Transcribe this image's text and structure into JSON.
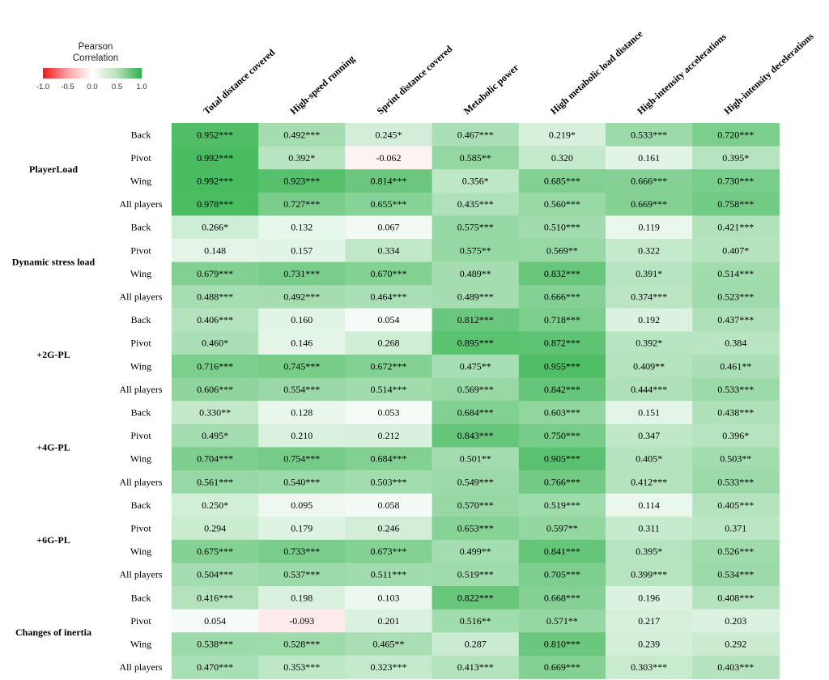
{
  "legend": {
    "title_line1": "Pearson",
    "title_line2": "Correlation",
    "ticks": [
      "-1.0",
      "-0.5",
      "0.0",
      "0.5",
      "1.0"
    ],
    "tick_values": [
      -1.0,
      -0.5,
      0.0,
      0.5,
      1.0
    ],
    "colors": {
      "negative": "#ee1b1b",
      "zero": "#ffffff",
      "positive": "#2fb14a"
    }
  },
  "chart_data": {
    "type": "heatmap",
    "title": "",
    "value_range": [
      -1.0,
      1.0
    ],
    "columns": [
      "Total distance covered",
      "High-speed running",
      "Sprint distance covered",
      "Metabolic power",
      "High metabolic load distance",
      "High-intensity accelerations",
      "High-intensity decelerations"
    ],
    "groups": [
      {
        "name": "PlayerLoad",
        "rows": [
          {
            "label": "Back",
            "values": [
              0.952,
              0.492,
              0.245,
              0.467,
              0.219,
              0.533,
              0.72
            ],
            "texts": [
              "0.952***",
              "0.492***",
              "0.245*",
              "0.467***",
              "0.219*",
              "0.533***",
              "0.720***"
            ]
          },
          {
            "label": "Pivot",
            "values": [
              0.992,
              0.392,
              -0.062,
              0.585,
              0.32,
              0.161,
              0.395
            ],
            "texts": [
              "0.992***",
              "0.392*",
              "-0.062",
              "0.585**",
              "0.320",
              "0.161",
              "0.395*"
            ]
          },
          {
            "label": "Wing",
            "values": [
              0.992,
              0.923,
              0.814,
              0.356,
              0.685,
              0.666,
              0.73
            ],
            "texts": [
              "0.992***",
              "0.923***",
              "0.814***",
              "0.356*",
              "0.685***",
              "0.666***",
              "0.730***"
            ]
          },
          {
            "label": "All players",
            "values": [
              0.978,
              0.727,
              0.655,
              0.435,
              0.56,
              0.669,
              0.758
            ],
            "texts": [
              "0.978***",
              "0.727***",
              "0.655***",
              "0.435***",
              "0.560***",
              "0.669***",
              "0.758***"
            ]
          }
        ]
      },
      {
        "name": "Dynamic stress load",
        "rows": [
          {
            "label": "Back",
            "values": [
              0.266,
              0.132,
              0.067,
              0.575,
              0.51,
              0.119,
              0.421
            ],
            "texts": [
              "0.266*",
              "0.132",
              "0.067",
              "0.575***",
              "0.510***",
              "0.119",
              "0.421***"
            ]
          },
          {
            "label": "Pivot",
            "values": [
              0.148,
              0.157,
              0.334,
              0.575,
              0.569,
              0.322,
              0.407
            ],
            "texts": [
              "0.148",
              "0.157",
              "0.334",
              "0.575**",
              "0.569**",
              "0.322",
              "0.407*"
            ]
          },
          {
            "label": "Wing",
            "values": [
              0.679,
              0.731,
              0.67,
              0.489,
              0.832,
              0.391,
              0.514
            ],
            "texts": [
              "0.679***",
              "0.731***",
              "0.670***",
              "0.489**",
              "0.832***",
              "0.391*",
              "0.514***"
            ]
          },
          {
            "label": "All players",
            "values": [
              0.488,
              0.492,
              0.464,
              0.489,
              0.666,
              0.374,
              0.523
            ],
            "texts": [
              "0.488***",
              "0.492***",
              "0.464***",
              "0.489***",
              "0.666***",
              "0.374***",
              "0.523***"
            ]
          }
        ]
      },
      {
        "name": "+2G-PL",
        "rows": [
          {
            "label": "Back",
            "values": [
              0.406,
              0.16,
              0.054,
              0.812,
              0.718,
              0.192,
              0.437
            ],
            "texts": [
              "0.406***",
              "0.160",
              "0.054",
              "0.812***",
              "0.718***",
              "0.192",
              "0.437***"
            ]
          },
          {
            "label": "Pivot",
            "values": [
              0.46,
              0.146,
              0.268,
              0.895,
              0.872,
              0.392,
              0.384
            ],
            "texts": [
              "0.460*",
              "0.146",
              "0.268",
              "0.895***",
              "0.872***",
              "0.392*",
              "0.384"
            ]
          },
          {
            "label": "Wing",
            "values": [
              0.716,
              0.745,
              0.672,
              0.475,
              0.955,
              0.409,
              0.461
            ],
            "texts": [
              "0.716***",
              "0.745***",
              "0.672***",
              "0.475**",
              "0.955***",
              "0.409**",
              "0.461**"
            ]
          },
          {
            "label": "All players",
            "values": [
              0.606,
              0.554,
              0.514,
              0.569,
              0.842,
              0.444,
              0.533
            ],
            "texts": [
              "0.606***",
              "0.554***",
              "0.514***",
              "0.569***",
              "0.842***",
              "0.444***",
              "0.533***"
            ]
          }
        ]
      },
      {
        "name": "+4G-PL",
        "rows": [
          {
            "label": "Back",
            "values": [
              0.33,
              0.128,
              0.053,
              0.684,
              0.603,
              0.151,
              0.438
            ],
            "texts": [
              "0.330**",
              "0.128",
              "0.053",
              "0.684***",
              "0.603***",
              "0.151",
              "0.438***"
            ]
          },
          {
            "label": "Pivot",
            "values": [
              0.495,
              0.21,
              0.212,
              0.843,
              0.75,
              0.347,
              0.396
            ],
            "texts": [
              "0.495*",
              "0.210",
              "0.212",
              "0.843***",
              "0.750***",
              "0.347",
              "0.396*"
            ]
          },
          {
            "label": "Wing",
            "values": [
              0.704,
              0.754,
              0.684,
              0.501,
              0.905,
              0.405,
              0.503
            ],
            "texts": [
              "0.704***",
              "0.754***",
              "0.684***",
              "0.501**",
              "0.905***",
              "0.405*",
              "0.503**"
            ]
          },
          {
            "label": "All players",
            "values": [
              0.561,
              0.54,
              0.503,
              0.549,
              0.766,
              0.412,
              0.533
            ],
            "texts": [
              "0.561***",
              "0.540***",
              "0.503***",
              "0.549***",
              "0.766***",
              "0.412***",
              "0.533***"
            ]
          }
        ]
      },
      {
        "name": "+6G-PL",
        "rows": [
          {
            "label": "Back",
            "values": [
              0.25,
              0.095,
              0.058,
              0.57,
              0.519,
              0.114,
              0.405
            ],
            "texts": [
              "0.250*",
              "0.095",
              "0.058",
              "0.570***",
              "0.519***",
              "0.114",
              "0.405***"
            ]
          },
          {
            "label": "Pivot",
            "values": [
              0.294,
              0.179,
              0.246,
              0.653,
              0.597,
              0.311,
              0.371
            ],
            "texts": [
              "0.294",
              "0.179",
              "0.246",
              "0.653***",
              "0.597**",
              "0.311",
              "0.371"
            ]
          },
          {
            "label": "Wing",
            "values": [
              0.675,
              0.733,
              0.673,
              0.499,
              0.841,
              0.395,
              0.526
            ],
            "texts": [
              "0.675***",
              "0.733***",
              "0.673***",
              "0.499**",
              "0.841***",
              "0.395*",
              "0.526***"
            ]
          },
          {
            "label": "All players",
            "values": [
              0.504,
              0.537,
              0.511,
              0.519,
              0.705,
              0.399,
              0.534
            ],
            "texts": [
              "0.504***",
              "0.537***",
              "0.511***",
              "0.519***",
              "0.705***",
              "0.399***",
              "0.534***"
            ]
          }
        ]
      },
      {
        "name": "Changes of inertia",
        "rows": [
          {
            "label": "Back",
            "values": [
              0.416,
              0.198,
              0.103,
              0.822,
              0.668,
              0.196,
              0.408
            ],
            "texts": [
              "0.416***",
              "0.198",
              "0.103",
              "0.822***",
              "0.668***",
              "0.196",
              "0.408***"
            ]
          },
          {
            "label": "Pivot",
            "values": [
              0.054,
              -0.093,
              0.201,
              0.516,
              0.571,
              0.217,
              0.203
            ],
            "texts": [
              "0.054",
              "-0.093",
              "0.201",
              "0.516**",
              "0.571**",
              "0.217",
              "0.203"
            ]
          },
          {
            "label": "Wing",
            "values": [
              0.538,
              0.528,
              0.465,
              0.287,
              0.81,
              0.239,
              0.292
            ],
            "texts": [
              "0.538***",
              "0.528***",
              "0.465**",
              "0.287",
              "0.810***",
              "0.239",
              "0.292"
            ]
          },
          {
            "label": "All players",
            "values": [
              0.47,
              0.353,
              0.323,
              0.413,
              0.669,
              0.303,
              0.403
            ],
            "texts": [
              "0.470***",
              "0.353***",
              "0.323***",
              "0.413***",
              "0.669***",
              "0.303***",
              "0.403***"
            ]
          }
        ]
      }
    ]
  }
}
